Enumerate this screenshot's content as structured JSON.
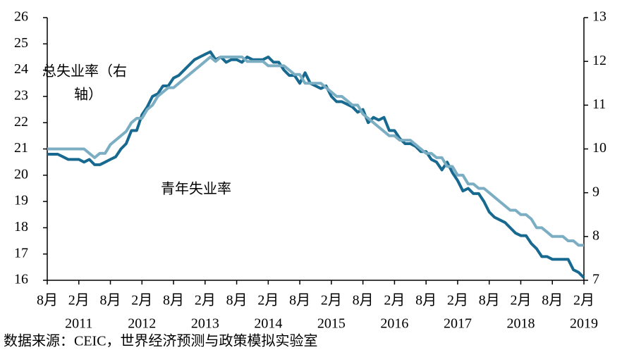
{
  "chart_data": {
    "type": "line",
    "x": [
      "2010-08",
      "2010-09",
      "2010-10",
      "2010-11",
      "2010-12",
      "2011-01",
      "2011-02",
      "2011-03",
      "2011-04",
      "2011-05",
      "2011-06",
      "2011-07",
      "2011-08",
      "2011-09",
      "2011-10",
      "2011-11",
      "2011-12",
      "2012-01",
      "2012-02",
      "2012-03",
      "2012-04",
      "2012-05",
      "2012-06",
      "2012-07",
      "2012-08",
      "2012-09",
      "2012-10",
      "2012-11",
      "2012-12",
      "2013-01",
      "2013-02",
      "2013-03",
      "2013-04",
      "2013-05",
      "2013-06",
      "2013-07",
      "2013-08",
      "2013-09",
      "2013-10",
      "2013-11",
      "2013-12",
      "2014-01",
      "2014-02",
      "2014-03",
      "2014-04",
      "2014-05",
      "2014-06",
      "2014-07",
      "2014-08",
      "2014-09",
      "2014-10",
      "2014-11",
      "2014-12",
      "2015-01",
      "2015-02",
      "2015-03",
      "2015-04",
      "2015-05",
      "2015-06",
      "2015-07",
      "2015-08",
      "2015-09",
      "2015-10",
      "2015-11",
      "2015-12",
      "2016-01",
      "2016-02",
      "2016-03",
      "2016-04",
      "2016-05",
      "2016-06",
      "2016-07",
      "2016-08",
      "2016-09",
      "2016-10",
      "2016-11",
      "2016-12",
      "2017-01",
      "2017-02",
      "2017-03",
      "2017-04",
      "2017-05",
      "2017-06",
      "2017-07",
      "2017-08",
      "2017-09",
      "2017-10",
      "2017-11",
      "2017-12",
      "2018-01",
      "2018-02",
      "2018-03",
      "2018-04",
      "2018-05",
      "2018-06",
      "2018-07",
      "2018-08",
      "2018-09",
      "2018-10",
      "2018-11",
      "2018-12",
      "2019-01",
      "2019-02"
    ],
    "series": [
      {
        "color": "#17698f",
        "axis": "y",
        "values": [
          20.8,
          20.8,
          20.8,
          20.7,
          20.6,
          20.6,
          20.6,
          20.5,
          20.6,
          20.4,
          20.4,
          20.5,
          20.6,
          20.7,
          21.0,
          21.2,
          21.7,
          21.7,
          22.3,
          22.6,
          23.0,
          23.1,
          23.4,
          23.4,
          23.7,
          23.8,
          24.0,
          24.2,
          24.4,
          24.5,
          24.6,
          24.7,
          24.4,
          24.5,
          24.3,
          24.4,
          24.4,
          24.3,
          24.5,
          24.4,
          24.4,
          24.4,
          24.5,
          24.3,
          24.3,
          24.0,
          23.8,
          23.8,
          23.5,
          23.9,
          23.5,
          23.4,
          23.3,
          23.4,
          23.0,
          22.8,
          22.8,
          22.7,
          22.6,
          22.4,
          22.5,
          22.0,
          22.2,
          22.1,
          22.2,
          21.7,
          21.7,
          21.4,
          21.2,
          21.2,
          21.1,
          20.9,
          20.9,
          20.6,
          20.5,
          20.2,
          20.5,
          20.1,
          19.8,
          19.4,
          19.5,
          19.3,
          19.3,
          19.0,
          18.6,
          18.4,
          18.3,
          18.2,
          18.0,
          17.8,
          17.7,
          17.7,
          17.4,
          17.2,
          16.9,
          16.9,
          16.8,
          16.8,
          16.8,
          16.8,
          16.4,
          16.3,
          16.1
        ]
      },
      {
        "color": "#7badc3",
        "axis": "y2",
        "values": [
          10.0,
          10.0,
          10.0,
          10.0,
          10.0,
          10.0,
          10.0,
          10.0,
          9.9,
          9.8,
          9.9,
          9.9,
          10.1,
          10.2,
          10.3,
          10.4,
          10.6,
          10.7,
          10.7,
          10.9,
          11.0,
          11.2,
          11.3,
          11.4,
          11.4,
          11.5,
          11.6,
          11.7,
          11.8,
          11.9,
          12.0,
          12.1,
          12.0,
          12.1,
          12.1,
          12.1,
          12.1,
          12.1,
          12.0,
          12.0,
          12.0,
          12.0,
          11.9,
          11.9,
          11.9,
          11.9,
          11.8,
          11.7,
          11.7,
          11.5,
          11.5,
          11.5,
          11.5,
          11.4,
          11.3,
          11.2,
          11.2,
          11.1,
          11.0,
          11.0,
          10.8,
          10.7,
          10.6,
          10.5,
          10.4,
          10.3,
          10.3,
          10.2,
          10.2,
          10.2,
          10.1,
          10.0,
          9.9,
          9.9,
          9.8,
          9.8,
          9.6,
          9.6,
          9.4,
          9.4,
          9.2,
          9.2,
          9.1,
          9.1,
          9.0,
          8.9,
          8.8,
          8.7,
          8.6,
          8.6,
          8.5,
          8.5,
          8.4,
          8.2,
          8.2,
          8.1,
          8.0,
          8.0,
          8.0,
          7.9,
          7.9,
          7.8,
          7.8
        ]
      }
    ],
    "ylim": [
      16,
      26
    ],
    "yticks": [
      16,
      17,
      18,
      19,
      20,
      21,
      22,
      23,
      24,
      25,
      26
    ],
    "y2lim": [
      7,
      13
    ],
    "y2ticks": [
      7,
      8,
      9,
      10,
      11,
      12,
      13
    ],
    "xticks": [
      {
        "value": "2010-08",
        "label": "8月"
      },
      {
        "value": "2011-02",
        "label": "2月"
      },
      {
        "value": "2011-08",
        "label": "8月"
      },
      {
        "value": "2012-02",
        "label": "2月"
      },
      {
        "value": "2012-08",
        "label": "8月"
      },
      {
        "value": "2013-02",
        "label": "2月"
      },
      {
        "value": "2013-08",
        "label": "8月"
      },
      {
        "value": "2014-02",
        "label": "2月"
      },
      {
        "value": "2014-08",
        "label": "8月"
      },
      {
        "value": "2015-02",
        "label": "2月"
      },
      {
        "value": "2015-08",
        "label": "8月"
      },
      {
        "value": "2016-02",
        "label": "2月"
      },
      {
        "value": "2016-08",
        "label": "8月"
      },
      {
        "value": "2017-02",
        "label": "2月"
      },
      {
        "value": "2017-08",
        "label": "8月"
      },
      {
        "value": "2018-02",
        "label": "2月"
      },
      {
        "value": "2018-08",
        "label": "8月"
      },
      {
        "value": "2019-02",
        "label": "2月"
      }
    ],
    "year_labels": [
      {
        "value": "2011-02",
        "label": "2011"
      },
      {
        "value": "2012-02",
        "label": "2012"
      },
      {
        "value": "2013-02",
        "label": "2013"
      },
      {
        "value": "2014-02",
        "label": "2014"
      },
      {
        "value": "2015-02",
        "label": "2015"
      },
      {
        "value": "2016-02",
        "label": "2016"
      },
      {
        "value": "2017-02",
        "label": "2017"
      },
      {
        "value": "2018-02",
        "label": "2018"
      },
      {
        "value": "2019-02",
        "label": "2019"
      }
    ],
    "annotations": [
      {
        "lines": [
          "总失业率（右",
          "轴）"
        ]
      },
      {
        "lines": [
          "青年失业率"
        ]
      }
    ],
    "source": "数据来源：CEIC，世界经济预测与政策模拟实验室"
  }
}
